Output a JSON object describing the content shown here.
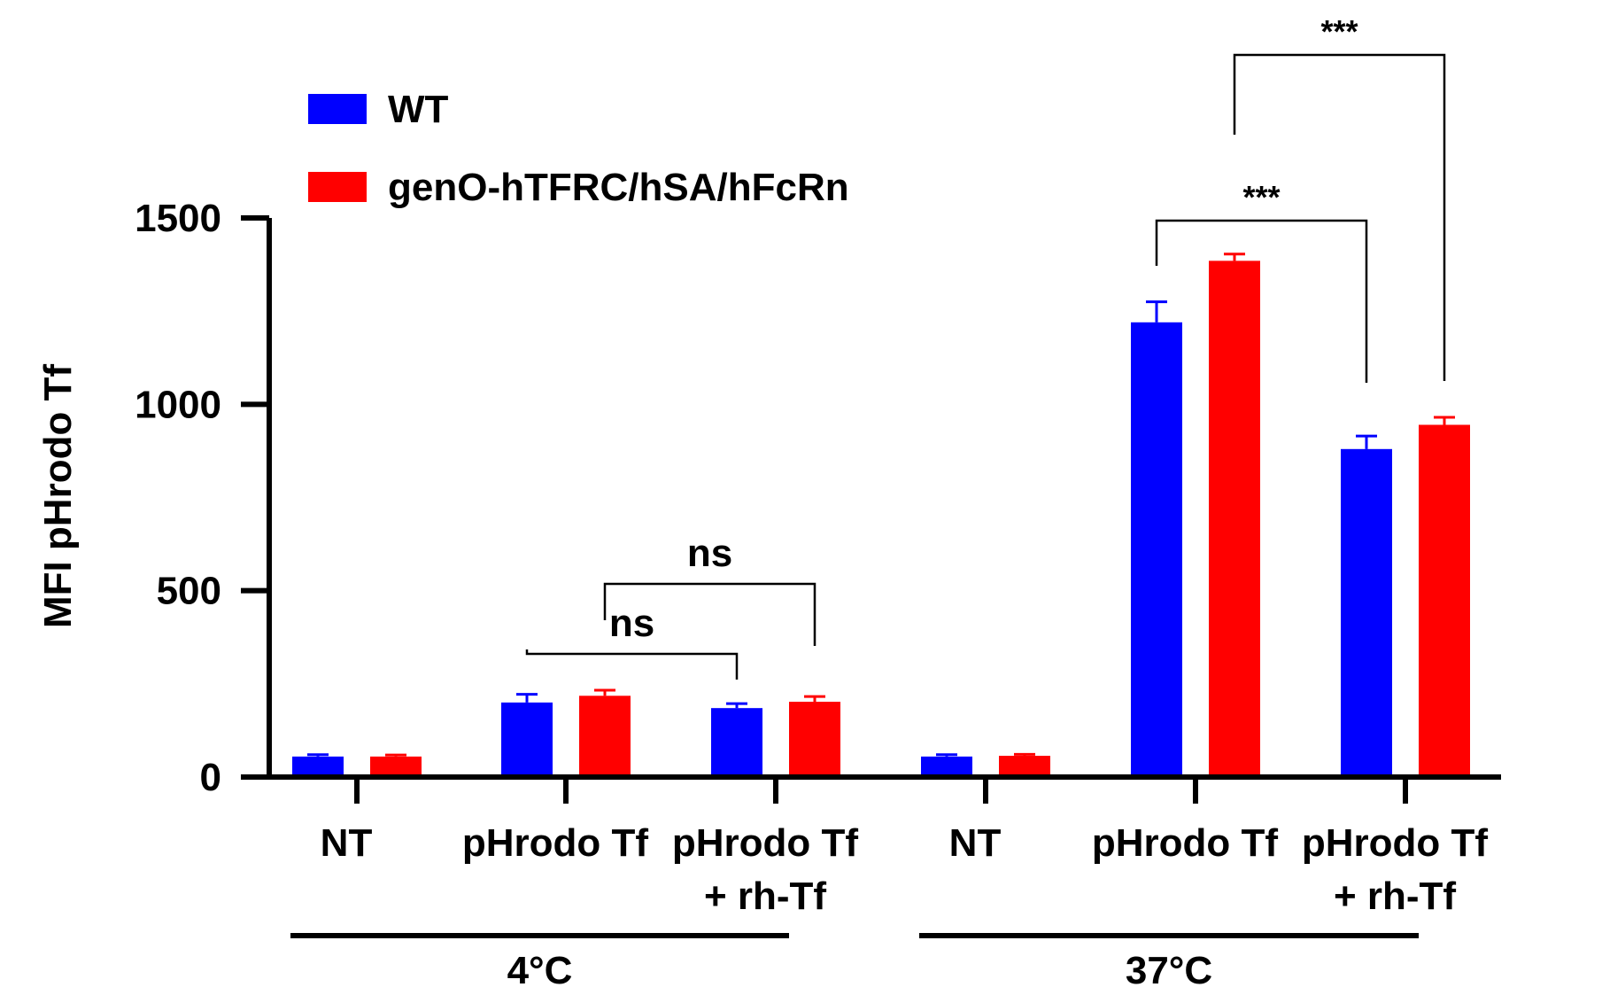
{
  "chart_data": {
    "type": "bar",
    "ylabel": "MFI pHrodo Tf",
    "ylim": [
      0,
      1500
    ],
    "yticks": [
      0,
      500,
      1000,
      1500
    ],
    "grid": false,
    "legend_position": "top-left",
    "categories": [
      {
        "line1": "NT",
        "line2": ""
      },
      {
        "line1": "pHrodo Tf",
        "line2": ""
      },
      {
        "line1": "pHrodo Tf",
        "line2": "+ rh-Tf"
      },
      {
        "line1": "NT",
        "line2": ""
      },
      {
        "line1": "pHrodo Tf",
        "line2": ""
      },
      {
        "line1": "pHrodo Tf",
        "line2": "+ rh-Tf"
      }
    ],
    "groups": [
      {
        "label": "4°C",
        "categories": [
          0,
          1,
          2
        ]
      },
      {
        "label": "37°C",
        "categories": [
          3,
          4,
          5
        ]
      }
    ],
    "series": [
      {
        "name": "WT",
        "color": "#0000ff",
        "values": [
          55,
          200,
          185,
          55,
          1220,
          880
        ],
        "errors": [
          5,
          22,
          12,
          5,
          55,
          35
        ]
      },
      {
        "name": "genO-hTFRC/hSA/hFcRn",
        "color": "#ff0000",
        "values": [
          55,
          218,
          202,
          57,
          1385,
          945
        ],
        "errors": [
          4,
          15,
          14,
          4,
          18,
          20
        ]
      }
    ],
    "significance": [
      {
        "label": "ns",
        "from_category": 1,
        "from_series": 0,
        "to_category": 2,
        "to_series": 0
      },
      {
        "label": "ns",
        "from_category": 1,
        "from_series": 1,
        "to_category": 2,
        "to_series": 1
      },
      {
        "label": "***",
        "from_category": 4,
        "from_series": 0,
        "to_category": 5,
        "to_series": 0
      },
      {
        "label": "***",
        "from_category": 4,
        "from_series": 1,
        "to_category": 5,
        "to_series": 1
      }
    ]
  }
}
